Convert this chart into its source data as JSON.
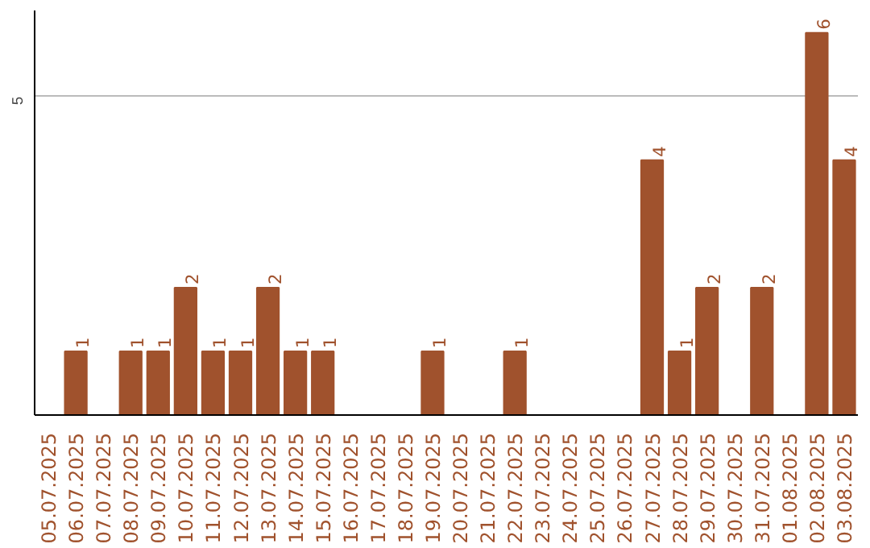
{
  "chart_data": {
    "type": "bar",
    "categories": [
      "05.07.2025",
      "06.07.2025",
      "07.07.2025",
      "08.07.2025",
      "09.07.2025",
      "10.07.2025",
      "11.07.2025",
      "12.07.2025",
      "13.07.2025",
      "14.07.2025",
      "15.07.2025",
      "16.07.2025",
      "17.07.2025",
      "18.07.2025",
      "19.07.2025",
      "20.07.2025",
      "21.07.2025",
      "22.07.2025",
      "23.07.2025",
      "24.07.2025",
      "25.07.2025",
      "26.07.2025",
      "27.07.2025",
      "28.07.2025",
      "29.07.2025",
      "30.07.2025",
      "31.07.2025",
      "01.08.2025",
      "02.08.2025",
      "03.08.2025"
    ],
    "values": [
      0,
      1,
      0,
      1,
      1,
      2,
      1,
      1,
      2,
      1,
      1,
      0,
      0,
      0,
      1,
      0,
      0,
      1,
      0,
      0,
      0,
      0,
      4,
      1,
      2,
      0,
      2,
      0,
      6,
      4
    ],
    "value_labels": [
      null,
      "1",
      null,
      "1",
      "1",
      "2",
      "1",
      "1",
      "2",
      "1",
      "1",
      null,
      null,
      null,
      "1",
      null,
      null,
      "1",
      null,
      null,
      null,
      null,
      "4",
      "1",
      "2",
      null,
      "2",
      null,
      "6",
      "4"
    ],
    "color": "#a0522d",
    "ylim": [
      0,
      6.35
    ],
    "yticks": [
      5
    ],
    "grid": "y"
  }
}
